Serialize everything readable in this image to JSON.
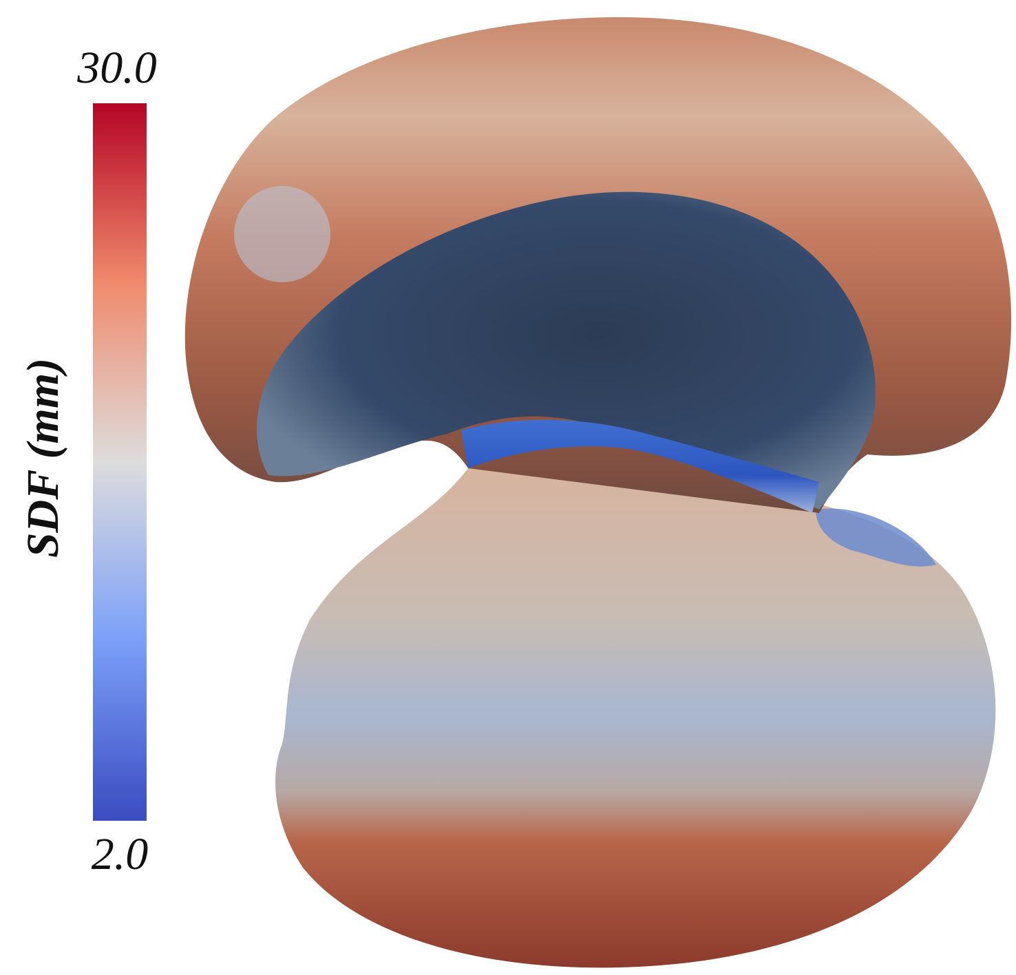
{
  "colorbar": {
    "title": "SDF (mm)",
    "max_label": "30.0",
    "min_label": "2.0"
  }
}
